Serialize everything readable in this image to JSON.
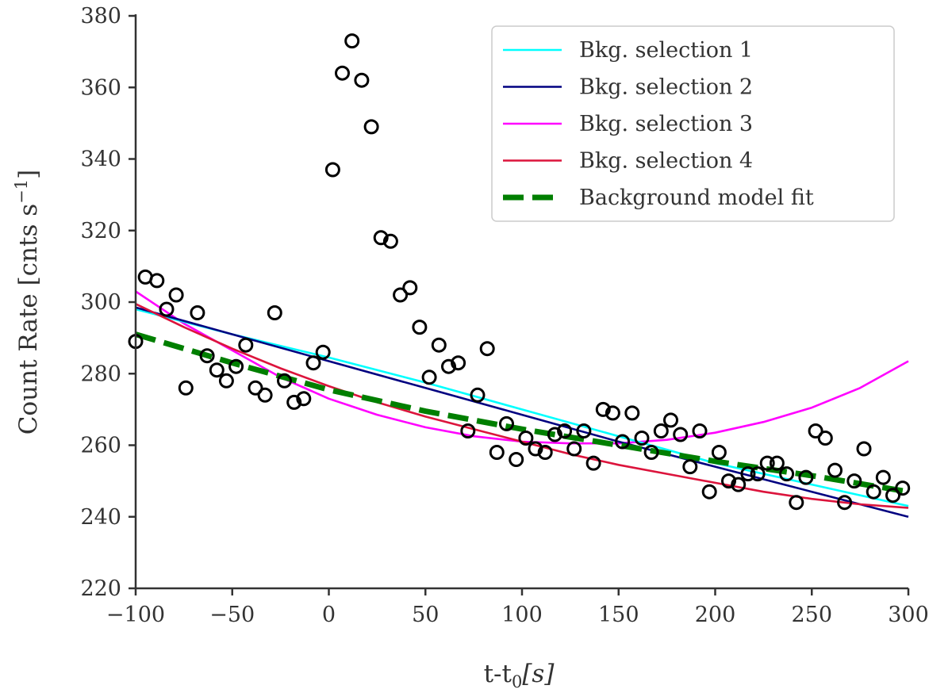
{
  "chart_data": {
    "type": "scatter",
    "xlabel": "t-t",
    "xlabel_sub": "0",
    "xlabel_unit": "[s]",
    "ylabel": "Count Rate [cnts s",
    "ylabel_sup": "−1",
    "ylabel_end": "]",
    "xlim": [
      -100,
      300
    ],
    "ylim": [
      220,
      380
    ],
    "x_ticks": [
      -100,
      -50,
      0,
      50,
      100,
      150,
      200,
      250,
      300
    ],
    "x_tick_labels": [
      "−100",
      "−50",
      "0",
      "50",
      "100",
      "150",
      "200",
      "250",
      "300"
    ],
    "y_ticks": [
      220,
      240,
      260,
      280,
      300,
      320,
      340,
      360,
      380
    ],
    "y_tick_labels": [
      "220",
      "240",
      "260",
      "280",
      "300",
      "320",
      "340",
      "360",
      "380"
    ],
    "grid": false,
    "legend_position": "top-right",
    "scatter_points": [
      [
        -100,
        289
      ],
      [
        -95,
        307
      ],
      [
        -89,
        306
      ],
      [
        -84,
        298
      ],
      [
        -79,
        302
      ],
      [
        -74,
        276
      ],
      [
        -68,
        297
      ],
      [
        -63,
        285
      ],
      [
        -58,
        281
      ],
      [
        -53,
        278
      ],
      [
        -48,
        282
      ],
      [
        -43,
        288
      ],
      [
        -38,
        276
      ],
      [
        -33,
        274
      ],
      [
        -28,
        297
      ],
      [
        -23,
        278
      ],
      [
        -18,
        272
      ],
      [
        -13,
        273
      ],
      [
        -8,
        283
      ],
      [
        -3,
        286
      ],
      [
        2,
        337
      ],
      [
        7,
        364
      ],
      [
        12,
        373
      ],
      [
        17,
        362
      ],
      [
        22,
        349
      ],
      [
        27,
        318
      ],
      [
        32,
        317
      ],
      [
        37,
        302
      ],
      [
        42,
        304
      ],
      [
        47,
        293
      ],
      [
        52,
        279
      ],
      [
        57,
        288
      ],
      [
        62,
        282
      ],
      [
        67,
        283
      ],
      [
        72,
        264
      ],
      [
        77,
        274
      ],
      [
        82,
        287
      ],
      [
        87,
        258
      ],
      [
        92,
        266
      ],
      [
        97,
        256
      ],
      [
        102,
        262
      ],
      [
        107,
        259
      ],
      [
        112,
        258
      ],
      [
        117,
        263
      ],
      [
        122,
        264
      ],
      [
        127,
        259
      ],
      [
        132,
        264
      ],
      [
        137,
        255
      ],
      [
        142,
        270
      ],
      [
        147,
        269
      ],
      [
        152,
        261
      ],
      [
        157,
        269
      ],
      [
        162,
        262
      ],
      [
        167,
        258
      ],
      [
        172,
        264
      ],
      [
        177,
        267
      ],
      [
        182,
        263
      ],
      [
        187,
        254
      ],
      [
        192,
        264
      ],
      [
        197,
        247
      ],
      [
        202,
        258
      ],
      [
        207,
        250
      ],
      [
        212,
        249
      ],
      [
        217,
        252
      ],
      [
        222,
        252
      ],
      [
        227,
        255
      ],
      [
        232,
        255
      ],
      [
        237,
        252
      ],
      [
        242,
        244
      ],
      [
        247,
        251
      ],
      [
        252,
        264
      ],
      [
        257,
        262
      ],
      [
        262,
        253
      ],
      [
        267,
        244
      ],
      [
        272,
        250
      ],
      [
        277,
        259
      ],
      [
        282,
        247
      ],
      [
        287,
        251
      ],
      [
        292,
        246
      ],
      [
        297,
        248
      ]
    ],
    "series": [
      {
        "name": "Bkg. selection 1",
        "color": "#00ffff",
        "style": "solid",
        "x": [
          -100,
          -50,
          0,
          50,
          100,
          150,
          200,
          250,
          300
        ],
        "y": [
          298,
          291,
          284.5,
          277.5,
          270,
          262.5,
          255,
          249,
          243
        ]
      },
      {
        "name": "Bkg. selection 2",
        "color": "#000080",
        "style": "solid",
        "x": [
          -100,
          -50,
          0,
          50,
          100,
          150,
          200,
          250,
          300
        ],
        "y": [
          298.5,
          291,
          283.5,
          276,
          268.5,
          261,
          254,
          247,
          240
        ]
      },
      {
        "name": "Bkg. selection 3",
        "color": "#ff00ff",
        "style": "solid",
        "x": [
          -100,
          -75,
          -50,
          -25,
          0,
          25,
          50,
          75,
          100,
          125,
          150,
          175,
          200,
          225,
          250,
          275,
          300
        ],
        "y": [
          303,
          294,
          286.5,
          279,
          273,
          268.5,
          265,
          262.5,
          261,
          260.5,
          260.5,
          261.5,
          263.5,
          266.5,
          270.5,
          276,
          283.5
        ]
      },
      {
        "name": "Bkg. selection 4",
        "color": "#dc143c",
        "style": "solid",
        "x": [
          -100,
          -75,
          -50,
          -25,
          0,
          25,
          50,
          75,
          100,
          125,
          150,
          175,
          200,
          225,
          250,
          275,
          300
        ],
        "y": [
          299.5,
          293,
          287,
          281.5,
          276.5,
          272,
          268,
          264.5,
          261,
          257.5,
          254.5,
          252,
          249.5,
          247,
          245,
          243.5,
          242.5
        ]
      },
      {
        "name": "Background model fit",
        "color": "#007f00",
        "style": "dashed",
        "x": [
          -100,
          -50,
          0,
          50,
          100,
          150,
          200,
          250,
          300
        ],
        "y": [
          291,
          283,
          275.5,
          269.5,
          264.5,
          260,
          255.5,
          251.5,
          247
        ]
      }
    ]
  }
}
